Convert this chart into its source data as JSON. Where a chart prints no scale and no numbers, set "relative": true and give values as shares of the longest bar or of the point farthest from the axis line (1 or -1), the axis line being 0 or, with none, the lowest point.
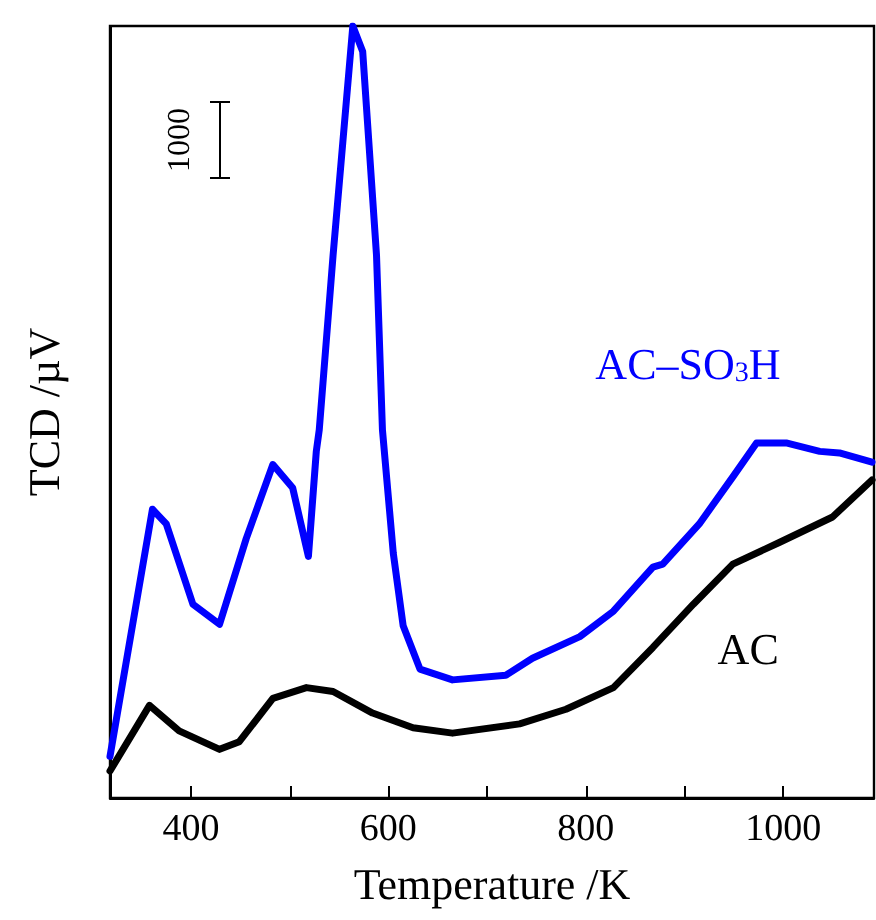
{
  "chart_data": {
    "type": "line",
    "relative": true,
    "xlabel": "Temperature /K",
    "ylabel": "TCD /µV",
    "xlim": [
      318,
      1092
    ],
    "xticks": [
      400,
      {
        "value": 500,
        "label": null
      },
      600,
      {
        "value": 700,
        "label": null
      },
      800,
      {
        "value": 900,
        "label": null
      },
      1000
    ],
    "annotations": [
      "1000"
    ],
    "legend": false,
    "grid": false,
    "marker": "none",
    "line_style": "solid",
    "series": [
      {
        "name": "AC–SO$_{3}$H",
        "color": "#0000ff",
        "x": [
          318,
          361,
          375,
          402,
          429,
          456,
          483,
          503,
          519,
          527,
          530,
          544,
          564,
          574,
          588,
          594,
          605,
          615,
          632,
          665,
          719,
          746,
          794,
          828,
          868,
          878,
          915,
          949,
          973,
          1003,
          1037,
          1057,
          1090
        ],
        "values": [
          0.054,
          0.374,
          0.355,
          0.251,
          0.225,
          0.336,
          0.432,
          0.402,
          0.313,
          0.449,
          0.477,
          0.703,
          1,
          0.967,
          0.703,
          0.477,
          0.317,
          0.223,
          0.167,
          0.153,
          0.159,
          0.181,
          0.209,
          0.242,
          0.299,
          0.303,
          0.355,
          0.416,
          0.46,
          0.46,
          0.449,
          0.447,
          0.435
        ]
      },
      {
        "name": "AC",
        "color": "#000000",
        "x": [
          318,
          358,
          388,
          429,
          449,
          483,
          517,
          544,
          584,
          625,
          665,
          733,
          780,
          828,
          868,
          909,
          949,
          996,
          1050,
          1090
        ],
        "values": [
          0.035,
          0.12,
          0.087,
          0.063,
          0.073,
          0.129,
          0.143,
          0.138,
          0.11,
          0.091,
          0.084,
          0.096,
          0.115,
          0.143,
          0.195,
          0.251,
          0.303,
          0.331,
          0.364,
          0.412
        ]
      }
    ]
  }
}
